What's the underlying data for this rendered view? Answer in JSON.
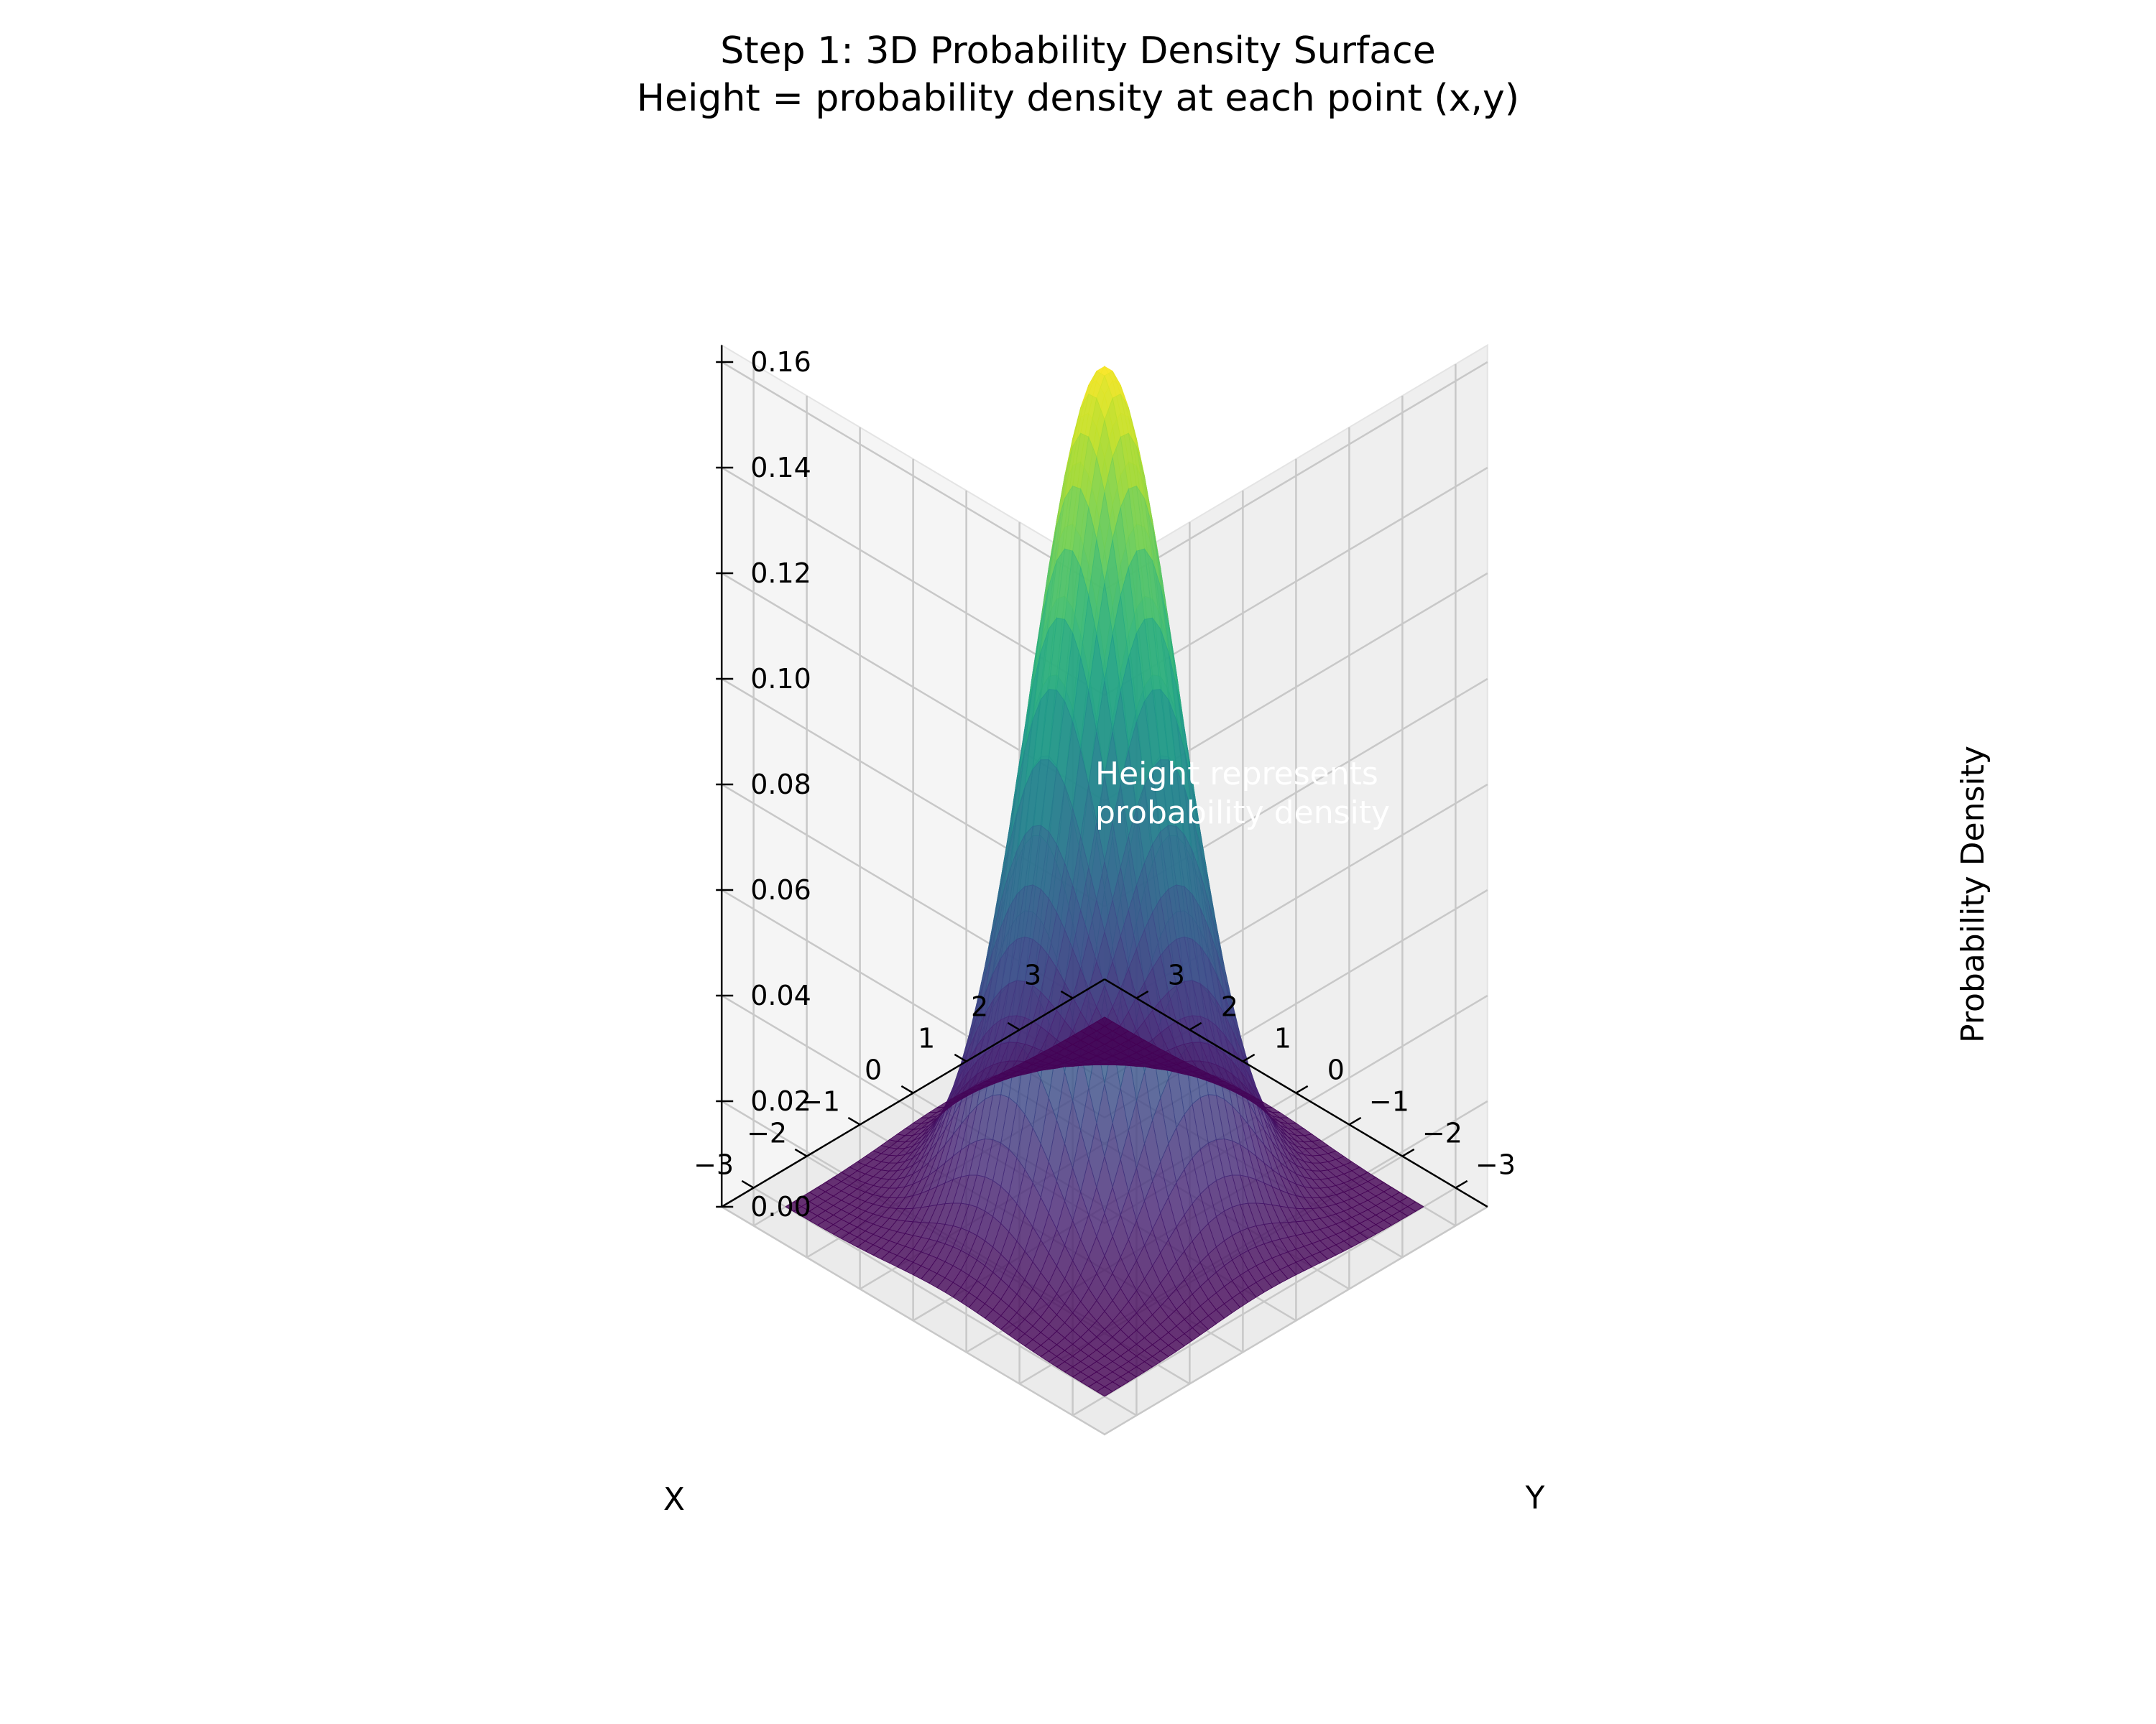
{
  "chart_data": {
    "type": "surface3d",
    "title": "Step 1: 3D Probability Density Surface",
    "subtitle": "Height = probability density at each point (x,y)",
    "xlabel": "X",
    "ylabel": "Y",
    "zlabel": "Probability Density",
    "x_ticks": [
      "3",
      "2",
      "1",
      "0",
      "−1",
      "−2",
      "−3"
    ],
    "y_ticks": [
      "−3",
      "−2",
      "−1",
      "0",
      "1",
      "2",
      "3"
    ],
    "z_ticks": [
      "0.00",
      "0.02",
      "0.04",
      "0.06",
      "0.08",
      "0.10",
      "0.12",
      "0.14",
      "0.16"
    ],
    "xlim": [
      -3,
      3
    ],
    "ylim": [
      -3,
      3
    ],
    "zlim": [
      0,
      0.16
    ],
    "function": "standard bivariate normal density, peak ≈ 0.159 at (0,0)",
    "colormap": "viridis",
    "grid": true,
    "annotation": "Height represents\nprobability density",
    "annotation_lines": [
      "Height represents",
      "probability density"
    ],
    "colors": {
      "pane": "#f2f2f2",
      "grid": "#c8c8c8",
      "low": "#440154",
      "high": "#fde725",
      "annotation": "#ffffff"
    }
  }
}
